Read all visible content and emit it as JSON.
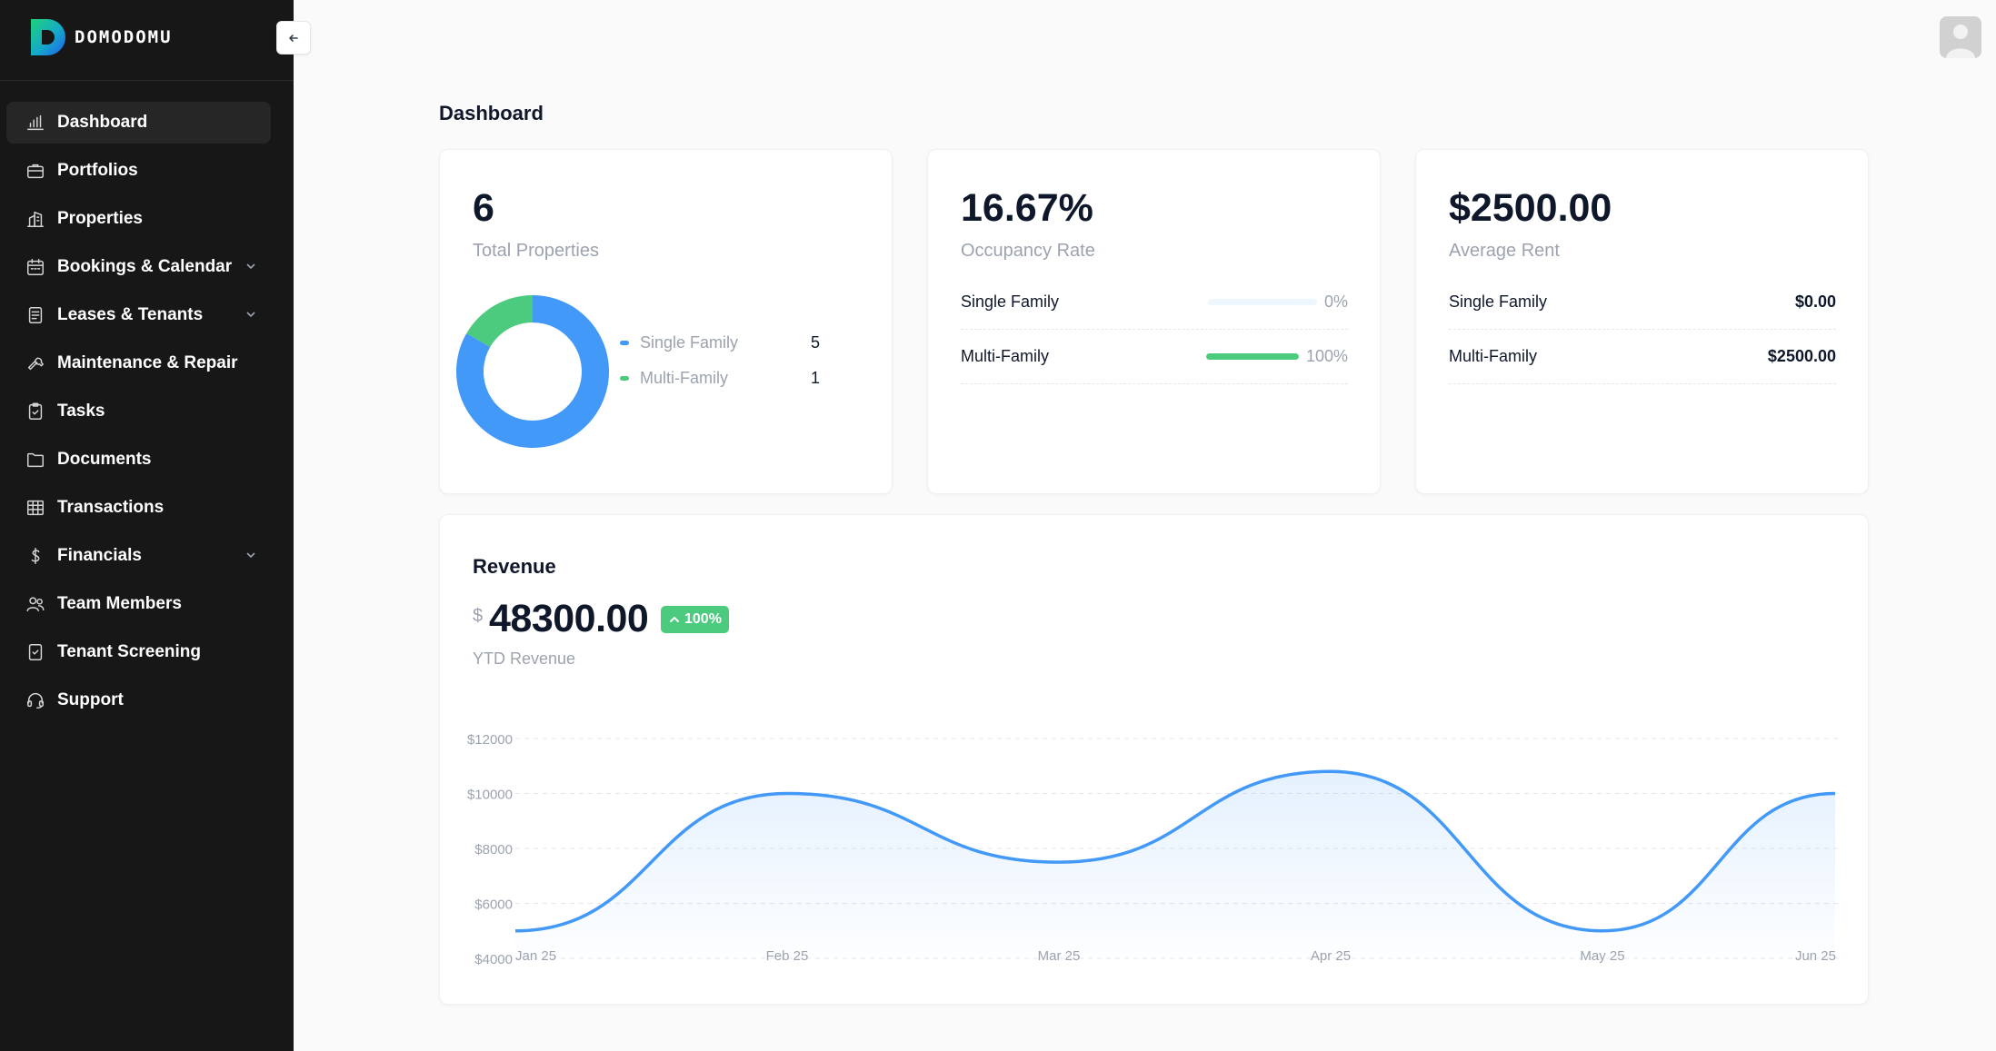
{
  "app": {
    "logo_text": "DOMODOMU"
  },
  "sidebar": {
    "collapse_icon": "arrow-left-icon",
    "items": [
      {
        "label": "Dashboard",
        "icon": "bar-chart-icon",
        "active": true,
        "has_children": false
      },
      {
        "label": "Portfolios",
        "icon": "briefcase-icon",
        "active": false,
        "has_children": false
      },
      {
        "label": "Properties",
        "icon": "building-icon",
        "active": false,
        "has_children": false
      },
      {
        "label": "Bookings & Calendar",
        "icon": "calendar-icon",
        "active": false,
        "has_children": true
      },
      {
        "label": "Leases & Tenants",
        "icon": "document-icon",
        "active": false,
        "has_children": true
      },
      {
        "label": "Maintenance & Repair",
        "icon": "wrench-icon",
        "active": false,
        "has_children": false
      },
      {
        "label": "Tasks",
        "icon": "clipboard-icon",
        "active": false,
        "has_children": false
      },
      {
        "label": "Documents",
        "icon": "folder-icon",
        "active": false,
        "has_children": false
      },
      {
        "label": "Transactions",
        "icon": "table-icon",
        "active": false,
        "has_children": false
      },
      {
        "label": "Financials",
        "icon": "dollar-icon",
        "active": false,
        "has_children": true
      },
      {
        "label": "Team Members",
        "icon": "users-icon",
        "active": false,
        "has_children": false
      },
      {
        "label": "Tenant Screening",
        "icon": "check-file-icon",
        "active": false,
        "has_children": false
      },
      {
        "label": "Support",
        "icon": "headset-icon",
        "active": false,
        "has_children": false
      }
    ]
  },
  "header": {
    "avatar_icon": "user-avatar-icon"
  },
  "main": {
    "title": "Dashboard",
    "properties_card": {
      "value": "6",
      "label": "Total Properties",
      "legend": [
        {
          "name": "Single Family",
          "count": "5",
          "color": "#4299f7"
        },
        {
          "name": "Multi-Family",
          "count": "1",
          "color": "#4ccb7e"
        }
      ]
    },
    "occupancy_card": {
      "value": "16.67%",
      "label": "Occupancy Rate",
      "rows": [
        {
          "name": "Single Family",
          "percent_text": "0%",
          "fill": 0
        },
        {
          "name": "Multi-Family",
          "percent_text": "100%",
          "fill": 1
        }
      ]
    },
    "rent_card": {
      "value": "$2500.00",
      "label": "Average Rent",
      "rows": [
        {
          "name": "Single Family",
          "amount": "$0.00"
        },
        {
          "name": "Multi-Family",
          "amount": "$2500.00"
        }
      ]
    },
    "revenue_card": {
      "title": "Revenue",
      "currency": "$",
      "amount": "48300.00",
      "badge": "100%",
      "badge_icon": "chevron-up-icon",
      "subtitle": "YTD Revenue"
    }
  },
  "colors": {
    "accent": "#4299f7",
    "success": "#4ccb7e",
    "sidebar_bg": "#171717"
  },
  "chart_data": {
    "type": "area",
    "x": [
      "Jan 25",
      "Feb 25",
      "Mar 25",
      "Apr 25",
      "May 25",
      "Jun 25"
    ],
    "series": [
      {
        "values": [
          5000,
          10000,
          7500,
          10800,
          5000,
          10000
        ]
      }
    ],
    "yticks": [
      "$4000",
      "$6000",
      "$8000",
      "$10000",
      "$12000"
    ],
    "ylim": [
      4000,
      12000
    ],
    "grid": true
  }
}
